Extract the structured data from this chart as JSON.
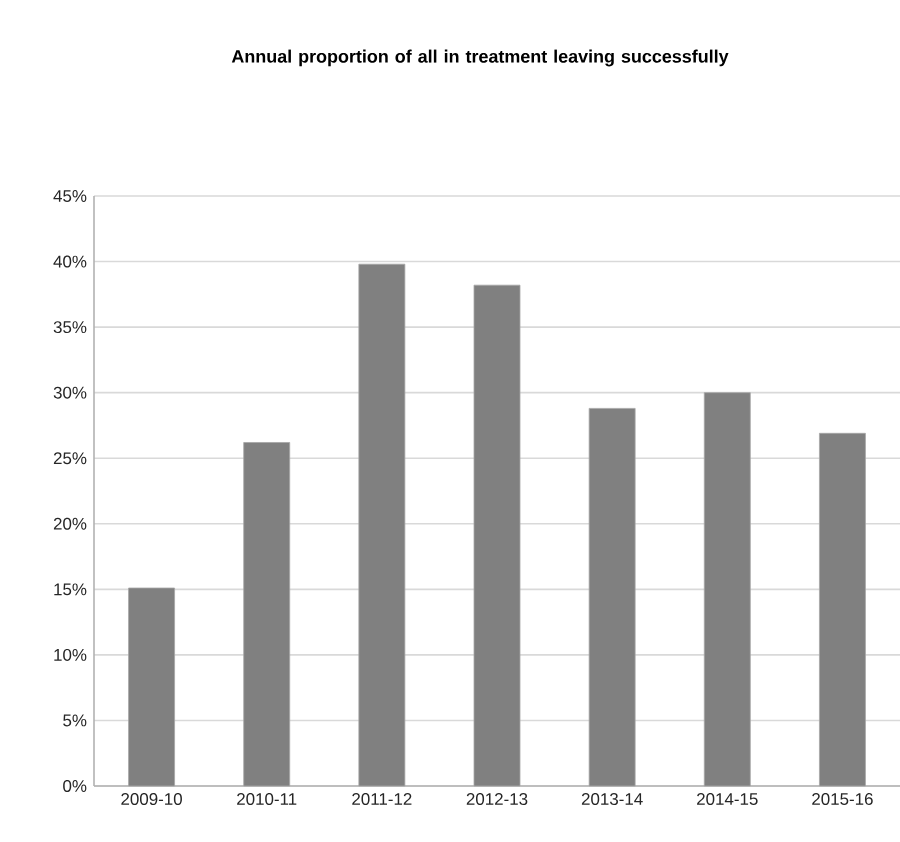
{
  "chart_data": {
    "type": "bar",
    "title": "Annual proportion of all in treatment leaving successfully",
    "categories": [
      "2009-10",
      "2010-11",
      "2011-12",
      "2012-13",
      "2013-14",
      "2014-15",
      "2015-16"
    ],
    "values": [
      15.1,
      26.2,
      39.8,
      38.2,
      28.8,
      30.0,
      26.9
    ],
    "color": "#808080",
    "ylim": [
      0,
      45
    ],
    "yticks": [
      {
        "value": 0,
        "label": "0%"
      },
      {
        "value": 5,
        "label": "5%"
      },
      {
        "value": 10,
        "label": "10%"
      },
      {
        "value": 15,
        "label": "15%"
      },
      {
        "value": 20,
        "label": "20%"
      },
      {
        "value": 25,
        "label": "25%"
      },
      {
        "value": 30,
        "label": "30%"
      },
      {
        "value": 35,
        "label": "35%"
      },
      {
        "value": 40,
        "label": "40%"
      },
      {
        "value": 45,
        "label": "45%"
      }
    ],
    "grid": "y"
  }
}
